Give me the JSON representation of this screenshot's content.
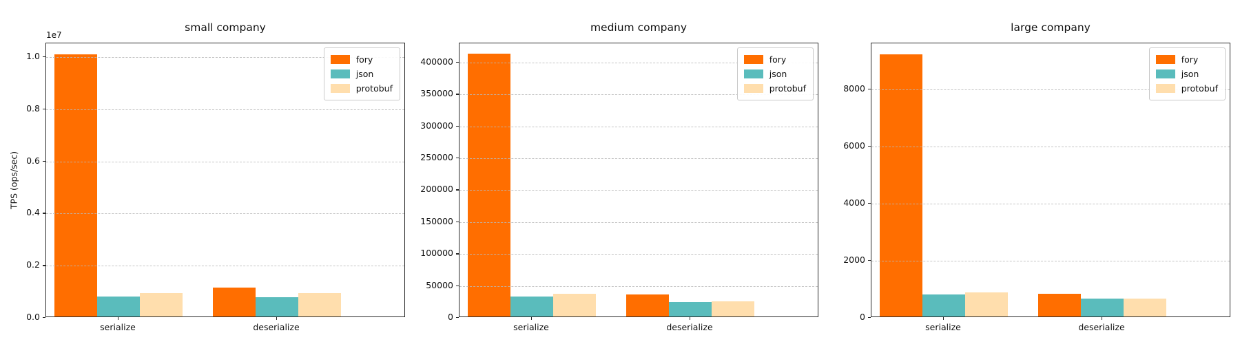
{
  "figure": {
    "background": "#ffffff",
    "axis_color": "#262626",
    "grid_style": "dashed-horizontal",
    "grid_color": "#b9b9b9"
  },
  "chart_data": [
    {
      "type": "bar",
      "title": "small company",
      "ylabel": "TPS (ops/sec)",
      "y_offset_label": "1e7",
      "categories": [
        "serialize",
        "deserialize"
      ],
      "series": [
        {
          "name": "fory",
          "color": "#ff6e00",
          "values": [
            10050000,
            1120000
          ]
        },
        {
          "name": "json",
          "color": "#5abcbc",
          "values": [
            760000,
            730000
          ]
        },
        {
          "name": "protobuf",
          "color": "#ffdead",
          "values": [
            890000,
            890000
          ]
        }
      ],
      "ylim": [
        0,
        10530000
      ],
      "yticks": [
        {
          "label": "0.0",
          "value": 0
        },
        {
          "label": "0.2",
          "value": 2000000
        },
        {
          "label": "0.4",
          "value": 4000000
        },
        {
          "label": "0.6",
          "value": 6000000
        },
        {
          "label": "0.8",
          "value": 8000000
        },
        {
          "label": "1.0",
          "value": 10000000
        }
      ],
      "legend": {
        "position": "upper right",
        "labels": [
          "fory",
          "json",
          "protobuf"
        ]
      }
    },
    {
      "type": "bar",
      "title": "medium company",
      "ylabel": "",
      "y_offset_label": "",
      "categories": [
        "serialize",
        "deserialize"
      ],
      "series": [
        {
          "name": "fory",
          "color": "#ff6e00",
          "values": [
            412000,
            34000
          ]
        },
        {
          "name": "json",
          "color": "#5abcbc",
          "values": [
            31500,
            23000
          ]
        },
        {
          "name": "protobuf",
          "color": "#ffdead",
          "values": [
            36000,
            24000
          ]
        }
      ],
      "ylim": [
        0,
        430000
      ],
      "yticks": [
        {
          "label": "0",
          "value": 0
        },
        {
          "label": "50000",
          "value": 50000
        },
        {
          "label": "100000",
          "value": 100000
        },
        {
          "label": "150000",
          "value": 150000
        },
        {
          "label": "200000",
          "value": 200000
        },
        {
          "label": "250000",
          "value": 250000
        },
        {
          "label": "300000",
          "value": 300000
        },
        {
          "label": "350000",
          "value": 350000
        },
        {
          "label": "400000",
          "value": 400000
        }
      ],
      "legend": {
        "position": "upper right",
        "labels": [
          "fory",
          "json",
          "protobuf"
        ]
      }
    },
    {
      "type": "bar",
      "title": "large company",
      "ylabel": "",
      "y_offset_label": "",
      "categories": [
        "serialize",
        "deserialize"
      ],
      "series": [
        {
          "name": "fory",
          "color": "#ff6e00",
          "values": [
            9180,
            800
          ]
        },
        {
          "name": "json",
          "color": "#5abcbc",
          "values": [
            770,
            630
          ]
        },
        {
          "name": "protobuf",
          "color": "#ffdead",
          "values": [
            845,
            625
          ]
        }
      ],
      "ylim": [
        0,
        9615
      ],
      "yticks": [
        {
          "label": "0",
          "value": 0
        },
        {
          "label": "2000",
          "value": 2000
        },
        {
          "label": "4000",
          "value": 4000
        },
        {
          "label": "6000",
          "value": 6000
        },
        {
          "label": "8000",
          "value": 8000
        }
      ],
      "legend": {
        "position": "upper right",
        "labels": [
          "fory",
          "json",
          "protobuf"
        ]
      }
    }
  ]
}
